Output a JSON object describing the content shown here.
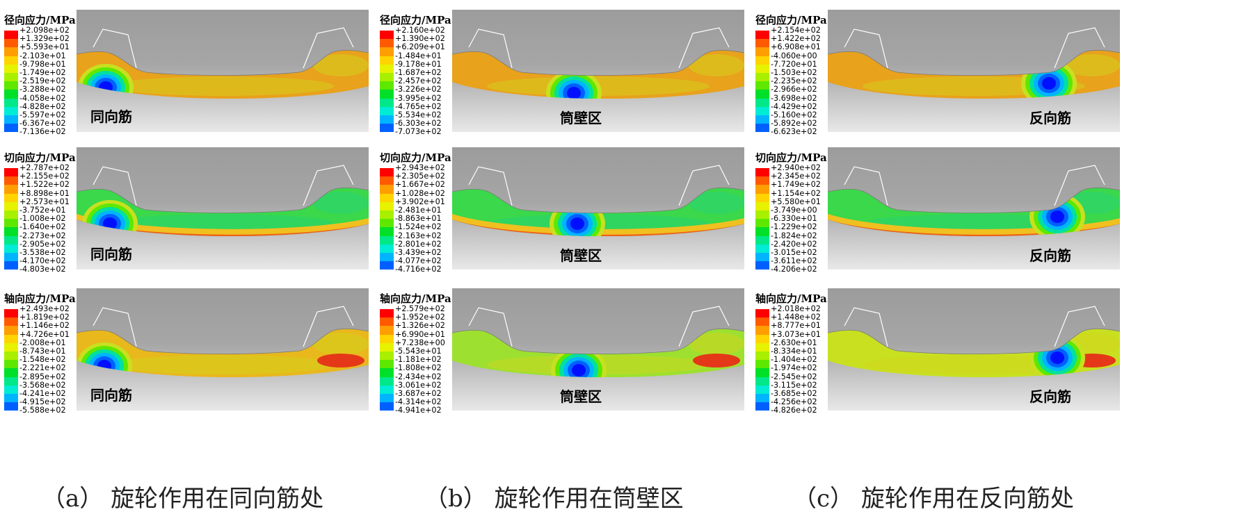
{
  "legend_colors": [
    "#ff0000",
    "#ff5a00",
    "#ff9e00",
    "#ffd400",
    "#e6f200",
    "#a8f000",
    "#5ee800",
    "#00e028",
    "#00e888",
    "#00ecd4",
    "#00b4ff",
    "#0060ff",
    "#0010ff"
  ],
  "columns": [
    {
      "caption": "（a） 旋轮作用在同向筋处",
      "zone_label": "同向筋",
      "panels": [
        {
          "title": "径向应力/MPa",
          "ticks": [
            "+2.098e+02",
            "+1.329e+02",
            "+5.593e+01",
            "-2.103e+01",
            "-9.798e+01",
            "-1.749e+02",
            "-2.519e+02",
            "-3.288e+02",
            "-4.058e+02",
            "-4.828e+02",
            "-5.597e+02",
            "-6.367e+02",
            "-7.136e+02"
          ]
        },
        {
          "title": "切向应力/MPa",
          "ticks": [
            "+2.787e+02",
            "+2.155e+02",
            "+1.522e+02",
            "+8.898e+01",
            "+2.573e+01",
            "-3.752e+01",
            "-1.008e+02",
            "-1.640e+02",
            "-2.273e+02",
            "-2.905e+02",
            "-3.538e+02",
            "-4.170e+02",
            "-4.803e+02"
          ]
        },
        {
          "title": "轴向应力/MPa",
          "ticks": [
            "+2.493e+02",
            "+1.819e+02",
            "+1.146e+02",
            "+4.726e+01",
            "-2.008e+01",
            "-8.743e+01",
            "-1.548e+02",
            "-2.221e+02",
            "-2.895e+02",
            "-3.568e+02",
            "-4.241e+02",
            "-4.915e+02",
            "-5.588e+02"
          ]
        }
      ]
    },
    {
      "caption": "（b） 旋轮作用在筒壁区",
      "zone_label": "筒壁区",
      "panels": [
        {
          "title": "径向应力/MPa",
          "ticks": [
            "+2.160e+02",
            "+1.390e+02",
            "+6.209e+01",
            "-1.484e+01",
            "-9.178e+01",
            "-1.687e+02",
            "-2.457e+02",
            "-3.226e+02",
            "-3.995e+02",
            "-4.765e+02",
            "-5.534e+02",
            "-6.303e+02",
            "-7.073e+02"
          ]
        },
        {
          "title": "切向应力/MPa",
          "ticks": [
            "+2.943e+02",
            "+2.305e+02",
            "+1.667e+02",
            "+1.028e+02",
            "+3.902e+01",
            "-2.481e+01",
            "-8.863e+01",
            "-1.524e+02",
            "-2.163e+02",
            "-2.801e+02",
            "-3.439e+02",
            "-4.077e+02",
            "-4.716e+02"
          ]
        },
        {
          "title": "轴向应力/MPa",
          "ticks": [
            "+2.579e+02",
            "+1.952e+02",
            "+1.326e+02",
            "+6.990e+01",
            "+7.238e+00",
            "-5.543e+01",
            "-1.181e+02",
            "-1.808e+02",
            "-2.434e+02",
            "-3.061e+02",
            "-3.687e+02",
            "-4.314e+02",
            "-4.941e+02"
          ]
        }
      ]
    },
    {
      "caption": "（c） 旋轮作用在反向筋处",
      "zone_label": "反向筋",
      "panels": [
        {
          "title": "径向应力/MPa",
          "ticks": [
            "+2.154e+02",
            "+1.422e+02",
            "+6.908e+01",
            "-4.060e+00",
            "-7.720e+01",
            "-1.503e+02",
            "-2.235e+02",
            "-2.966e+02",
            "-3.698e+02",
            "-4.429e+02",
            "-5.160e+02",
            "-5.892e+02",
            "-6.623e+02"
          ]
        },
        {
          "title": "切向应力/MPa",
          "ticks": [
            "+2.940e+02",
            "+2.345e+02",
            "+1.749e+02",
            "+1.154e+02",
            "+5.580e+01",
            "-3.749e+00",
            "-6.330e+01",
            "-1.229e+02",
            "-1.824e+02",
            "-2.420e+02",
            "-3.015e+02",
            "-3.611e+02",
            "-4.206e+02"
          ]
        },
        {
          "title": "轴向应力/MPa",
          "ticks": [
            "+2.018e+02",
            "+1.448e+02",
            "+8.777e+01",
            "+3.073e+01",
            "-2.630e+01",
            "-8.334e+01",
            "-1.404e+02",
            "-1.974e+02",
            "-2.545e+02",
            "-3.115e+02",
            "-3.685e+02",
            "-4.256e+02",
            "-4.826e+02"
          ]
        }
      ]
    }
  ]
}
